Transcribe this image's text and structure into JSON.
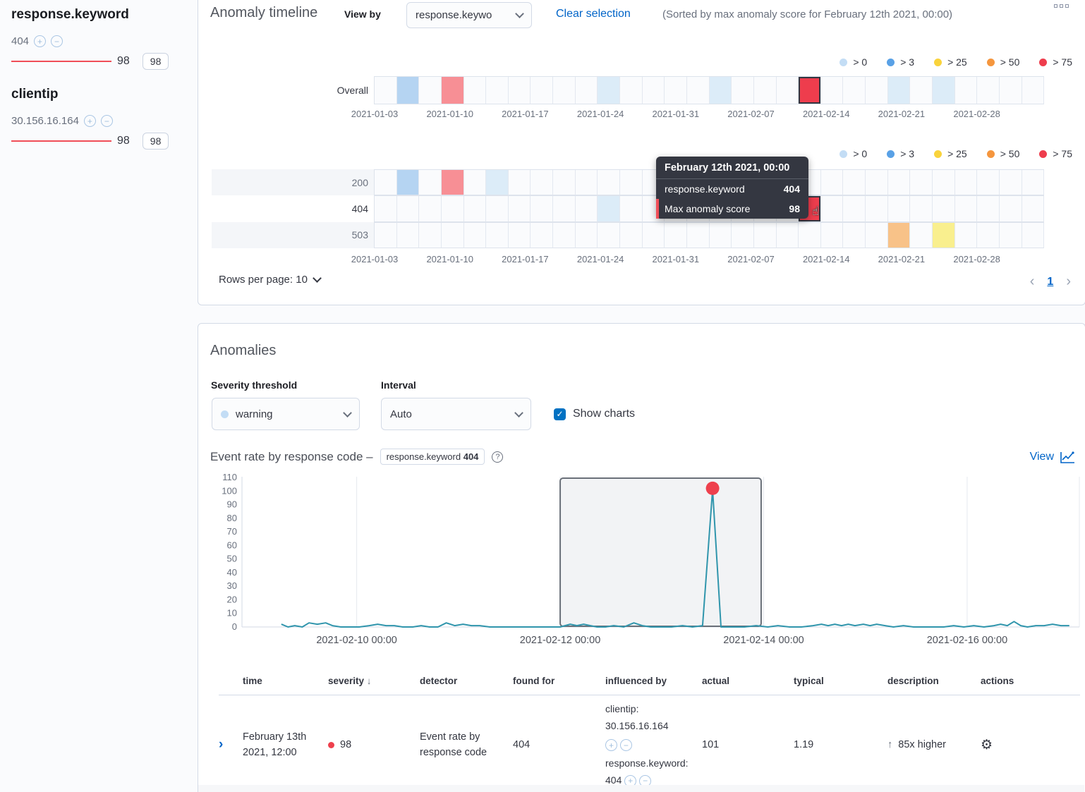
{
  "sidebar": {
    "groups": [
      {
        "title": "response.keyword",
        "value": "404",
        "score": "98",
        "badge": "98"
      },
      {
        "title": "clientip",
        "value": "30.156.16.164",
        "score": "98",
        "badge": "98"
      }
    ]
  },
  "timeline_panel": {
    "title": "Anomaly timeline",
    "view_by_label": "View by",
    "view_by_value": "response.keywo",
    "clear_selection": "Clear selection",
    "sorted_note": "(Sorted by max anomaly score for February 12th 2021, 00:00)",
    "rows_per_page": "Rows per page: 10",
    "page_number": "1",
    "prev_arrow": "‹",
    "next_arrow": "›",
    "tooltip": {
      "title": "February 12th 2021, 00:00",
      "rows": [
        {
          "label": "response.keyword",
          "value": "404",
          "marked": false
        },
        {
          "label": "Max anomaly score",
          "value": "98",
          "marked": true
        }
      ]
    }
  },
  "anomalies_panel": {
    "title": "Anomalies",
    "severity_label": "Severity threshold",
    "severity_value": "warning",
    "severity_dot_color": "#c3ddf5",
    "interval_label": "Interval",
    "interval_value": "Auto",
    "show_charts_label": "Show charts",
    "check_glyph": "✓",
    "chart_heading": "Event rate by response code –",
    "field_badge_label": "response.keyword",
    "field_badge_value": "404",
    "help_glyph": "?",
    "view_link": "View",
    "table": {
      "headers": [
        "time",
        "severity",
        "detector",
        "found for",
        "influenced by",
        "actual",
        "typical",
        "description",
        "actions"
      ],
      "sort_header": "severity",
      "sort_icon": "↓",
      "row": {
        "expand_glyph": "›",
        "time": "February 13th 2021, 12:00",
        "severity": "98",
        "detector": "Event rate by response code",
        "found_for": "404",
        "influenced_by_1": "clientip: 30.156.16.164",
        "influenced_by_2": "response.keyword: 404",
        "actual": "101",
        "typical": "1.19",
        "description_arrow": "↑",
        "description": "85x higher",
        "gear_glyph": "⚙"
      }
    }
  },
  "chart_data": [
    {
      "type": "heatmap",
      "name": "overall-swimlane",
      "n_cols": 30,
      "legend": [
        {
          "label": "> 0",
          "color": "#c3ddf5"
        },
        {
          "label": "> 3",
          "color": "#59a1e6"
        },
        {
          "label": "> 25",
          "color": "#f9d33c"
        },
        {
          "label": "> 50",
          "color": "#f5963e"
        },
        {
          "label": "> 75",
          "color": "#ee3d4d"
        }
      ],
      "x_axis": [
        "2021-01-03",
        "2021-01-10",
        "2021-01-17",
        "2021-01-24",
        "2021-01-31",
        "2021-02-07",
        "2021-02-14",
        "2021-02-21",
        "2021-02-28"
      ],
      "rows": [
        {
          "label": "Overall",
          "dark": true,
          "striped": false,
          "cells": [
            {
              "i": 1,
              "c": "#b5d4f2"
            },
            {
              "i": 3,
              "c": "#f78f95"
            },
            {
              "i": 10,
              "c": "#dcecf8"
            },
            {
              "i": 15,
              "c": "#dcecf8"
            },
            {
              "i": 19,
              "c": "#ee3d4d",
              "selected": true
            },
            {
              "i": 23,
              "c": "#dcecf8"
            },
            {
              "i": 25,
              "c": "#dcecf8"
            }
          ]
        }
      ]
    },
    {
      "type": "heatmap",
      "name": "viewby-swimlane",
      "n_cols": 30,
      "rows": [
        {
          "label": "200",
          "dark": false,
          "striped": true,
          "cells": [
            {
              "i": 1,
              "c": "#b5d4f2"
            },
            {
              "i": 3,
              "c": "#f78f95"
            },
            {
              "i": 5,
              "c": "#dcecf8"
            }
          ]
        },
        {
          "label": "404",
          "dark": true,
          "striped": false,
          "cells": [
            {
              "i": 10,
              "c": "#dcecf8"
            },
            {
              "i": 19,
              "c": "#ee3d4d",
              "selected": true
            }
          ]
        },
        {
          "label": "503",
          "dark": false,
          "striped": true,
          "cells": [
            {
              "i": 23,
              "c": "#f8c288"
            },
            {
              "i": 25,
              "c": "#f9ef8e"
            }
          ]
        }
      ]
    },
    {
      "type": "line",
      "name": "event-rate-by-response-code",
      "title": "Event rate by response code (response.keyword 404)",
      "ylim": [
        0,
        110
      ],
      "y_ticks": [
        0,
        10,
        20,
        30,
        40,
        50,
        60,
        70,
        80,
        90,
        100,
        110
      ],
      "x_ticks": [
        {
          "fx": 0.137,
          "label": "2021-02-10 00:00"
        },
        {
          "fx": 0.38,
          "label": "2021-02-12 00:00"
        },
        {
          "fx": 0.623,
          "label": "2021-02-14 00:00"
        },
        {
          "fx": 0.866,
          "label": "2021-02-16 00:00"
        }
      ],
      "selection": {
        "fx0": 0.38,
        "fx1": 0.62
      },
      "line_color": "#3095ac",
      "dot_color": "#ee404d",
      "anomaly_point": {
        "fx": 0.562,
        "v": 101
      },
      "series": [
        {
          "name": "event rate",
          "points": [
            [
              0.047,
              2
            ],
            [
              0.055,
              0
            ],
            [
              0.063,
              1
            ],
            [
              0.072,
              0
            ],
            [
              0.08,
              3
            ],
            [
              0.09,
              2
            ],
            [
              0.1,
              3
            ],
            [
              0.108,
              1
            ],
            [
              0.118,
              0
            ],
            [
              0.128,
              0
            ],
            [
              0.14,
              0
            ],
            [
              0.152,
              1
            ],
            [
              0.162,
              2
            ],
            [
              0.172,
              1
            ],
            [
              0.182,
              1
            ],
            [
              0.192,
              0
            ],
            [
              0.204,
              0
            ],
            [
              0.214,
              1
            ],
            [
              0.224,
              0
            ],
            [
              0.234,
              0
            ],
            [
              0.244,
              3
            ],
            [
              0.254,
              1
            ],
            [
              0.264,
              2
            ],
            [
              0.274,
              1
            ],
            [
              0.284,
              1
            ],
            [
              0.296,
              0
            ],
            [
              0.31,
              0
            ],
            [
              0.324,
              0
            ],
            [
              0.338,
              0
            ],
            [
              0.352,
              0
            ],
            [
              0.366,
              0
            ],
            [
              0.38,
              0
            ],
            [
              0.392,
              2
            ],
            [
              0.4,
              1
            ],
            [
              0.408,
              2
            ],
            [
              0.416,
              1
            ],
            [
              0.424,
              0
            ],
            [
              0.434,
              0
            ],
            [
              0.444,
              1
            ],
            [
              0.456,
              0
            ],
            [
              0.468,
              3
            ],
            [
              0.478,
              1
            ],
            [
              0.488,
              0
            ],
            [
              0.5,
              0
            ],
            [
              0.513,
              0
            ],
            [
              0.526,
              1
            ],
            [
              0.538,
              0
            ],
            [
              0.55,
              1
            ],
            [
              0.562,
              101
            ],
            [
              0.572,
              0
            ],
            [
              0.586,
              0
            ],
            [
              0.6,
              0
            ],
            [
              0.614,
              1
            ],
            [
              0.628,
              0
            ],
            [
              0.64,
              1
            ],
            [
              0.654,
              0
            ],
            [
              0.668,
              0
            ],
            [
              0.682,
              1
            ],
            [
              0.692,
              2
            ],
            [
              0.7,
              1
            ],
            [
              0.708,
              2
            ],
            [
              0.716,
              1
            ],
            [
              0.724,
              2
            ],
            [
              0.732,
              1
            ],
            [
              0.742,
              2
            ],
            [
              0.75,
              1
            ],
            [
              0.758,
              2
            ],
            [
              0.768,
              1
            ],
            [
              0.778,
              0
            ],
            [
              0.79,
              1
            ],
            [
              0.802,
              0
            ],
            [
              0.814,
              0
            ],
            [
              0.826,
              0
            ],
            [
              0.838,
              0
            ],
            [
              0.85,
              1
            ],
            [
              0.862,
              0
            ],
            [
              0.874,
              1
            ],
            [
              0.886,
              0
            ],
            [
              0.898,
              1
            ],
            [
              0.906,
              2
            ],
            [
              0.914,
              1
            ],
            [
              0.922,
              4
            ],
            [
              0.93,
              1
            ],
            [
              0.938,
              0
            ],
            [
              0.948,
              1
            ],
            [
              0.958,
              1
            ],
            [
              0.968,
              2
            ],
            [
              0.978,
              1
            ],
            [
              0.988,
              1
            ]
          ]
        }
      ]
    }
  ]
}
